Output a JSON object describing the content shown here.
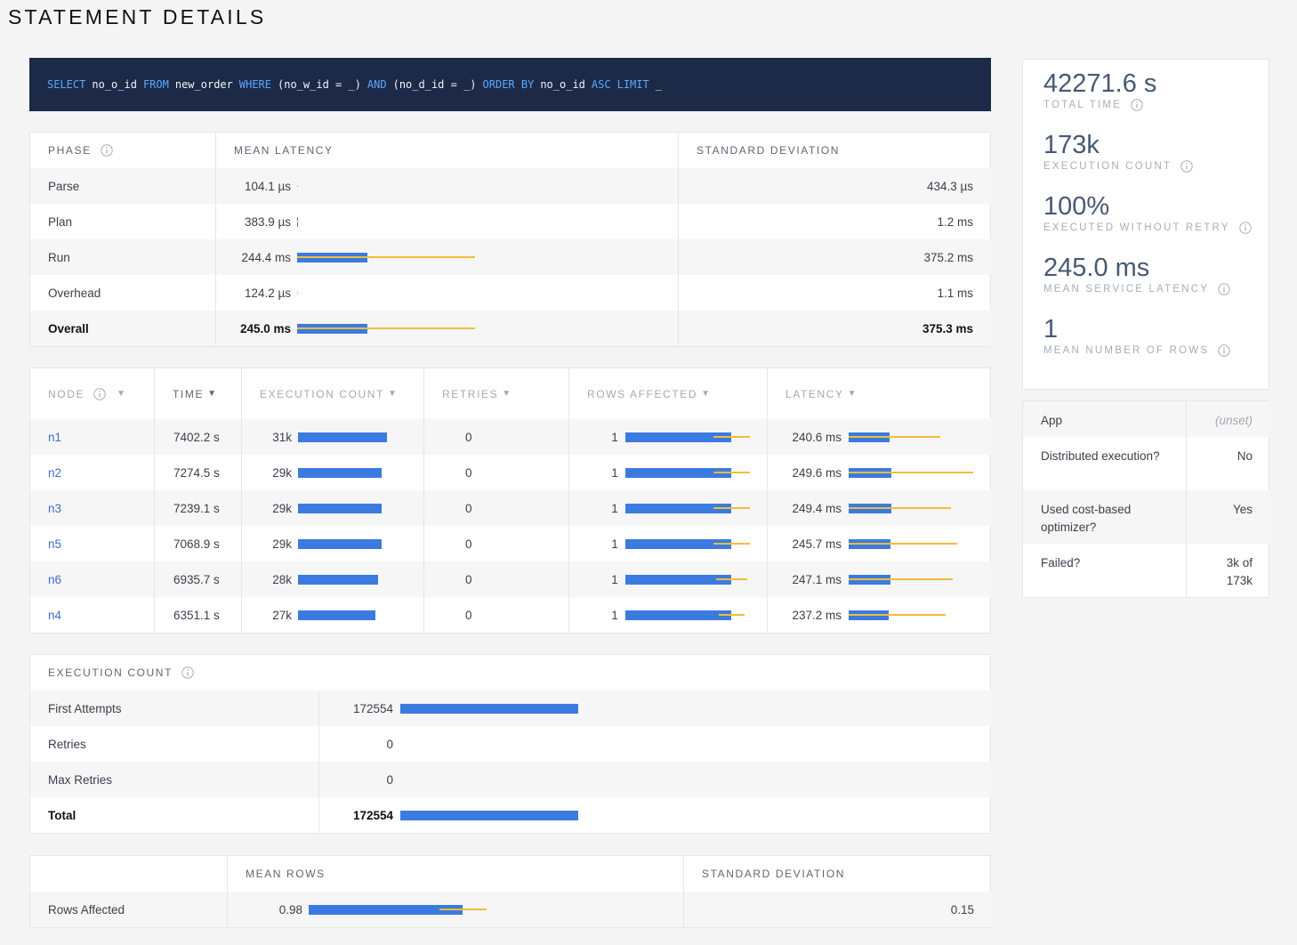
{
  "header": {
    "title": "STATEMENT DETAILS"
  },
  "query": [
    {
      "text": "SELECT",
      "keyword": true
    },
    {
      "text": "no_o_id",
      "keyword": false
    },
    {
      "text": "FROM",
      "keyword": true
    },
    {
      "text": "new_order",
      "keyword": false
    },
    {
      "text": "WHERE",
      "keyword": true
    },
    {
      "text": "(no_w_id = _)",
      "keyword": false
    },
    {
      "text": "AND",
      "keyword": true
    },
    {
      "text": "(no_d_id = _)",
      "keyword": false
    },
    {
      "text": "ORDER BY",
      "keyword": true
    },
    {
      "text": "no_o_id",
      "keyword": false
    },
    {
      "text": "ASC",
      "keyword": true
    },
    {
      "text": "LIMIT",
      "keyword": true
    },
    {
      "text": "_",
      "keyword": false
    }
  ],
  "phases": {
    "columns": [
      "PHASE",
      "MEAN LATENCY",
      "STANDARD DEVIATION"
    ],
    "rows": [
      {
        "phase": "Parse",
        "mean": 0.1041,
        "mean_label": "104.1 µs",
        "sd": 0.4343,
        "sd_label": "434.3 µs"
      },
      {
        "phase": "Plan",
        "mean": 0.3839,
        "mean_label": "383.9 µs",
        "sd": 1.2,
        "sd_label": "1.2 ms"
      },
      {
        "phase": "Run",
        "mean": 244.4,
        "mean_label": "244.4 ms",
        "sd": 375.2,
        "sd_label": "375.2 ms"
      },
      {
        "phase": "Overhead",
        "mean": 0.1242,
        "mean_label": "124.2 µs",
        "sd": 1.1,
        "sd_label": "1.1 ms"
      },
      {
        "phase": "Overall",
        "mean": 245.0,
        "mean_label": "245.0 ms",
        "sd": 375.3,
        "sd_label": "375.3 ms"
      }
    ]
  },
  "nodes": {
    "columns": [
      "NODE",
      "TIME",
      "EXECUTION COUNT",
      "RETRIES",
      "ROWS AFFECTED",
      "LATENCY"
    ],
    "sort_icon": "▼",
    "rows": [
      {
        "node": "n1",
        "time": 7402.2,
        "time_label": "7402.2 s",
        "count": 31000,
        "count_label": "31k",
        "retries": 0,
        "rows": 1,
        "rows_sd": 0.17,
        "latency": 240.6,
        "latency_label": "240.6 ms",
        "latency_sd": 298
      },
      {
        "node": "n2",
        "time": 7274.5,
        "time_label": "7274.5 s",
        "count": 29000,
        "count_label": "29k",
        "retries": 0,
        "rows": 1,
        "rows_sd": 0.17,
        "latency": 249.6,
        "latency_label": "249.6 ms",
        "latency_sd": 483
      },
      {
        "node": "n3",
        "time": 7239.1,
        "time_label": "7239.1 s",
        "count": 29000,
        "count_label": "29k",
        "retries": 0,
        "rows": 1,
        "rows_sd": 0.17,
        "latency": 249.4,
        "latency_label": "249.4 ms",
        "latency_sd": 353
      },
      {
        "node": "n5",
        "time": 7068.9,
        "time_label": "7068.9 s",
        "count": 29000,
        "count_label": "29k",
        "retries": 0,
        "rows": 1,
        "rows_sd": 0.17,
        "latency": 245.7,
        "latency_label": "245.7 ms",
        "latency_sd": 392
      },
      {
        "node": "n6",
        "time": 6935.7,
        "time_label": "6935.7 s",
        "count": 28000,
        "count_label": "28k",
        "retries": 0,
        "rows": 1,
        "rows_sd": 0.15,
        "latency": 247.1,
        "latency_label": "247.1 ms",
        "latency_sd": 365
      },
      {
        "node": "n4",
        "time": 6351.1,
        "time_label": "6351.1 s",
        "count": 27000,
        "count_label": "27k",
        "retries": 0,
        "rows": 1,
        "rows_sd": 0.12,
        "latency": 237.2,
        "latency_label": "237.2 ms",
        "latency_sd": 333
      }
    ]
  },
  "execution_count": {
    "title": "EXECUTION COUNT",
    "rows": [
      {
        "name": "First Attempts",
        "value": 172554
      },
      {
        "name": "Retries",
        "value": 0
      },
      {
        "name": "Max Retries",
        "value": 0
      },
      {
        "name": "Total",
        "value": 172554
      }
    ]
  },
  "rows_affected": {
    "columns": [
      "MEAN ROWS",
      "STANDARD DEVIATION"
    ],
    "row": {
      "name": "Rows Affected",
      "mean": 0.98,
      "sd": 0.15
    }
  },
  "summary": [
    {
      "value": "42271.6 s",
      "label": "TOTAL TIME"
    },
    {
      "value": "173k",
      "label": "EXECUTION COUNT"
    },
    {
      "value": "100%",
      "label": "EXECUTED WITHOUT RETRY"
    },
    {
      "value": "245.0 ms",
      "label": "MEAN SERVICE LATENCY"
    },
    {
      "value": "1",
      "label": "MEAN NUMBER OF ROWS"
    }
  ],
  "info": [
    {
      "label": "App",
      "value": "(unset)"
    },
    {
      "label": "Distributed execution?",
      "value": "No"
    },
    {
      "label": "Used cost-based optimizer?",
      "value": "Yes"
    },
    {
      "label": "Failed?",
      "value": "3k of 173k"
    }
  ]
}
